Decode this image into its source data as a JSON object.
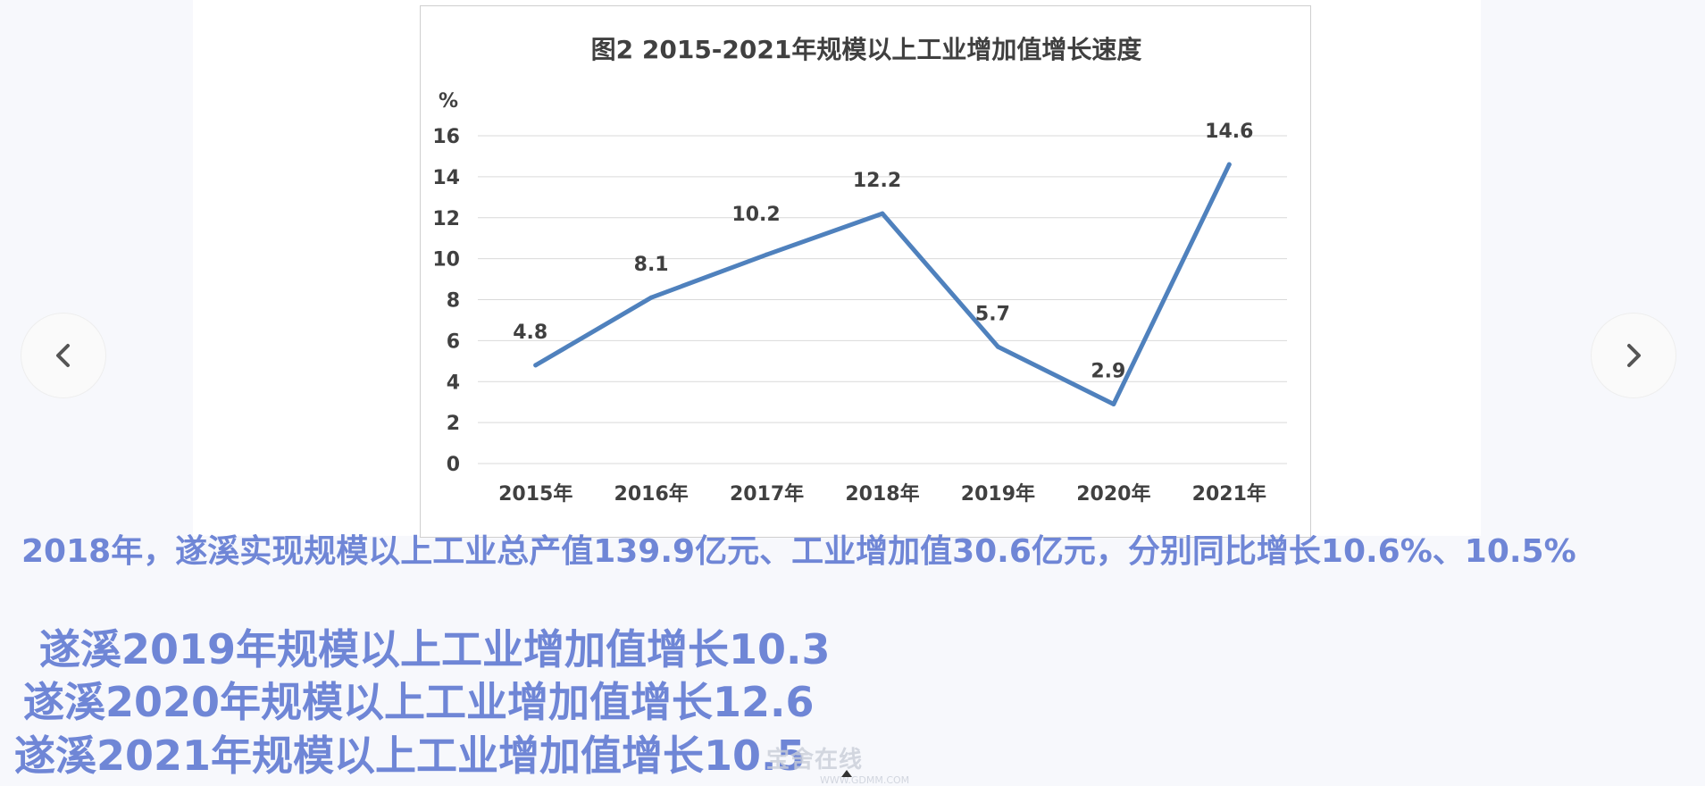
{
  "chart_data": {
    "type": "line",
    "title": "图2  2015-2021年规模以上工业增加值增长速度",
    "ylabel": "%",
    "categories": [
      "2015年",
      "2016年",
      "2017年",
      "2018年",
      "2019年",
      "2020年",
      "2021年"
    ],
    "values": [
      4.8,
      8.1,
      10.2,
      12.2,
      5.7,
      2.9,
      14.6
    ],
    "data_labels": [
      "4.8",
      "8.1",
      "10.2",
      "12.2",
      "5.7",
      "2.9",
      "14.6"
    ],
    "yticks": [
      "0",
      "2",
      "4",
      "6",
      "8",
      "10",
      "12",
      "14",
      "16"
    ],
    "ylim": [
      0,
      16
    ],
    "grid": true,
    "line_color": "#4f81bd"
  },
  "captions": {
    "main": "2018年，遂溪实现规模以上工业总产值139.9亿元、工业增加值30.6亿元，分别同比增长10.6%、10.5%",
    "line1": "遂溪2019年规模以上工业增加值增长10.3",
    "line2": "遂溪2020年规模以上工业增加值增长12.6",
    "line3": "遂溪2021年规模以上工业增加值增长10.5"
  },
  "watermark": {
    "text": "宝舍在线",
    "url": "WWW.GDMM.COM"
  },
  "icons": {
    "prev": "chevron-left-icon",
    "next": "chevron-right-icon"
  },
  "colors": {
    "caption": "#6f86d6",
    "series": "#4f81bd"
  }
}
